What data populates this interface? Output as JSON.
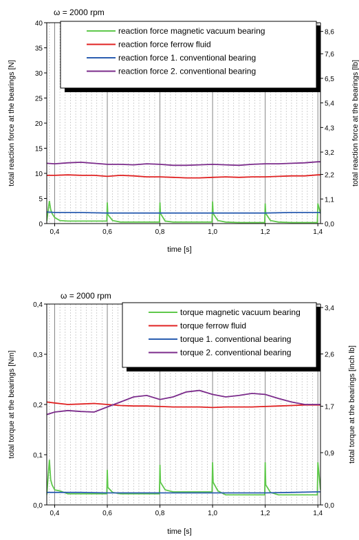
{
  "chart_data": [
    {
      "type": "line",
      "title": "ω = 2000 rpm",
      "xlabel": "time [s]",
      "ylabel": "total reaction force at the bearings [N]",
      "y2label": "total reaction force at the bearings [lb]",
      "xlim": [
        0.37,
        1.41
      ],
      "ylim": [
        0,
        40
      ],
      "x_ticks": [
        0.4,
        0.6,
        0.8,
        1.0,
        1.2,
        1.4
      ],
      "x_tick_labels": [
        "0,4",
        "0,6",
        "0,8",
        "1,0",
        "1,2",
        "1,4"
      ],
      "y_ticks": [
        0,
        5,
        10,
        15,
        20,
        25,
        30,
        35,
        40
      ],
      "y_tick_labels": [
        "0",
        "5",
        "10",
        "15",
        "20",
        "25",
        "30",
        "35",
        "40"
      ],
      "y2_ticks": [
        0,
        1.1,
        2.2,
        3.2,
        4.3,
        5.4,
        6.5,
        7.6,
        8.6
      ],
      "y2_tick_labels": [
        "0,0",
        "1,1",
        "2,2",
        "3,2",
        "4,3",
        "5,4",
        "6,5",
        "7,6",
        "8,6"
      ],
      "y2lim": [
        0,
        8.99
      ],
      "legend_position": "top-right",
      "grid": "vertical-dashed",
      "series": [
        {
          "name": "reaction force magnetic vacuum bearing",
          "color": "#5ec84a",
          "x": [
            0.37,
            0.38,
            0.385,
            0.39,
            0.4,
            0.42,
            0.45,
            0.5,
            0.55,
            0.598,
            0.6,
            0.602,
            0.62,
            0.65,
            0.7,
            0.75,
            0.798,
            0.8,
            0.802,
            0.82,
            0.85,
            0.9,
            0.95,
            0.998,
            1.0,
            1.002,
            1.02,
            1.05,
            1.1,
            1.15,
            1.198,
            1.2,
            1.202,
            1.22,
            1.25,
            1.3,
            1.35,
            1.398,
            1.4,
            1.41
          ],
          "y": [
            0.5,
            4.5,
            2.8,
            2.0,
            1.2,
            0.6,
            0.5,
            0.5,
            0.5,
            0.5,
            4.2,
            1.8,
            0.6,
            0.3,
            0.3,
            0.3,
            0.3,
            4.2,
            2.0,
            0.5,
            0.3,
            0.3,
            0.3,
            0.3,
            4.4,
            2.0,
            0.6,
            0.3,
            0.2,
            0.2,
            0.2,
            4.0,
            2.0,
            0.6,
            0.3,
            0.2,
            0.2,
            0.2,
            4.0,
            2.0
          ]
        },
        {
          "name": "reaction force ferrow fluid",
          "color": "#e02020",
          "x": [
            0.37,
            0.4,
            0.45,
            0.5,
            0.55,
            0.6,
            0.65,
            0.7,
            0.75,
            0.8,
            0.85,
            0.9,
            0.95,
            1.0,
            1.05,
            1.1,
            1.15,
            1.2,
            1.25,
            1.3,
            1.35,
            1.4,
            1.41
          ],
          "y": [
            9.6,
            9.6,
            9.7,
            9.6,
            9.6,
            9.4,
            9.6,
            9.5,
            9.3,
            9.3,
            9.2,
            9.1,
            9.1,
            9.2,
            9.3,
            9.2,
            9.3,
            9.3,
            9.4,
            9.5,
            9.5,
            9.7,
            9.7
          ]
        },
        {
          "name": "reaction force 1. conventional bearing",
          "color": "#2a5db0",
          "x": [
            0.37,
            0.4,
            0.5,
            0.6,
            0.7,
            0.8,
            0.9,
            1.0,
            1.1,
            1.2,
            1.3,
            1.4,
            1.41
          ],
          "y": [
            2.3,
            2.2,
            2.2,
            2.1,
            2.1,
            2.1,
            2.1,
            2.1,
            2.1,
            2.1,
            2.2,
            2.2,
            2.2
          ]
        },
        {
          "name": "reaction force 2. conventional bearing",
          "color": "#7a2a8a",
          "x": [
            0.37,
            0.4,
            0.45,
            0.5,
            0.55,
            0.6,
            0.65,
            0.7,
            0.75,
            0.8,
            0.85,
            0.9,
            0.95,
            1.0,
            1.05,
            1.1,
            1.15,
            1.2,
            1.25,
            1.3,
            1.35,
            1.4,
            1.41
          ],
          "y": [
            12.0,
            11.9,
            12.1,
            12.2,
            12.0,
            11.8,
            11.8,
            11.7,
            11.9,
            11.8,
            11.6,
            11.6,
            11.7,
            11.8,
            11.7,
            11.6,
            11.8,
            11.9,
            11.9,
            12.0,
            12.1,
            12.3,
            12.3
          ]
        }
      ]
    },
    {
      "type": "line",
      "title": "ω = 2000 rpm",
      "xlabel": "time [s]",
      "ylabel": "total torque at the bearings [Nm]",
      "y2label": "total torque at the bearings [inch lb]",
      "xlim": [
        0.37,
        1.41
      ],
      "ylim": [
        0,
        0.4
      ],
      "x_ticks": [
        0.4,
        0.6,
        0.8,
        1.0,
        1.2,
        1.4
      ],
      "x_tick_labels": [
        "0,4",
        "0,6",
        "0,8",
        "1,0",
        "1,2",
        "1,4"
      ],
      "y_ticks": [
        0,
        0.1,
        0.2,
        0.3,
        0.4
      ],
      "y_tick_labels": [
        "0,0",
        "0,1",
        "0,2",
        "0,3",
        "0,4"
      ],
      "y2_ticks": [
        0,
        0.9,
        1.7,
        2.6,
        3.4
      ],
      "y2_tick_labels": [
        "0,0",
        "0,9",
        "1,7",
        "2,6",
        "3,4"
      ],
      "y2lim": [
        0,
        3.46
      ],
      "legend_position": "top-right",
      "grid": "vertical-dashed",
      "series": [
        {
          "name": "torque magnetic vacuum bearing",
          "color": "#5ec84a",
          "x": [
            0.37,
            0.38,
            0.385,
            0.39,
            0.4,
            0.42,
            0.45,
            0.5,
            0.55,
            0.598,
            0.6,
            0.602,
            0.62,
            0.65,
            0.7,
            0.75,
            0.798,
            0.8,
            0.802,
            0.82,
            0.85,
            0.9,
            0.95,
            0.998,
            1.0,
            1.002,
            1.02,
            1.05,
            1.1,
            1.15,
            1.198,
            1.2,
            1.202,
            1.22,
            1.25,
            1.3,
            1.35,
            1.398,
            1.4,
            1.41
          ],
          "y": [
            0.02,
            0.09,
            0.05,
            0.04,
            0.03,
            0.028,
            0.022,
            0.022,
            0.022,
            0.022,
            0.07,
            0.035,
            0.025,
            0.022,
            0.022,
            0.022,
            0.022,
            0.08,
            0.045,
            0.03,
            0.026,
            0.026,
            0.026,
            0.026,
            0.085,
            0.045,
            0.028,
            0.02,
            0.02,
            0.02,
            0.02,
            0.085,
            0.04,
            0.025,
            0.02,
            0.02,
            0.02,
            0.02,
            0.085,
            0.03
          ]
        },
        {
          "name": "torque ferrow fluid",
          "color": "#e02020",
          "x": [
            0.37,
            0.4,
            0.45,
            0.5,
            0.55,
            0.6,
            0.65,
            0.7,
            0.75,
            0.8,
            0.85,
            0.9,
            0.95,
            1.0,
            1.05,
            1.1,
            1.15,
            1.2,
            1.25,
            1.3,
            1.35,
            1.4,
            1.41
          ],
          "y": [
            0.205,
            0.203,
            0.2,
            0.201,
            0.202,
            0.2,
            0.198,
            0.197,
            0.197,
            0.196,
            0.195,
            0.195,
            0.195,
            0.194,
            0.195,
            0.195,
            0.195,
            0.196,
            0.197,
            0.198,
            0.199,
            0.199,
            0.199
          ]
        },
        {
          "name": "torque 1. conventional bearing",
          "color": "#2a5db0",
          "x": [
            0.37,
            0.4,
            0.5,
            0.6,
            0.7,
            0.8,
            0.9,
            1.0,
            1.1,
            1.2,
            1.3,
            1.4,
            1.41
          ],
          "y": [
            0.025,
            0.025,
            0.025,
            0.024,
            0.024,
            0.024,
            0.024,
            0.024,
            0.024,
            0.024,
            0.025,
            0.026,
            0.026
          ]
        },
        {
          "name": "torque 2. conventional bearing",
          "color": "#7a2a8a",
          "x": [
            0.37,
            0.4,
            0.45,
            0.5,
            0.55,
            0.6,
            0.65,
            0.7,
            0.75,
            0.8,
            0.85,
            0.9,
            0.95,
            1.0,
            1.05,
            1.1,
            1.15,
            1.2,
            1.25,
            1.3,
            1.35,
            1.4,
            1.41
          ],
          "y": [
            0.18,
            0.185,
            0.188,
            0.186,
            0.185,
            0.195,
            0.205,
            0.215,
            0.218,
            0.21,
            0.215,
            0.225,
            0.228,
            0.22,
            0.215,
            0.218,
            0.222,
            0.22,
            0.212,
            0.205,
            0.2,
            0.2,
            0.2
          ]
        }
      ]
    }
  ]
}
